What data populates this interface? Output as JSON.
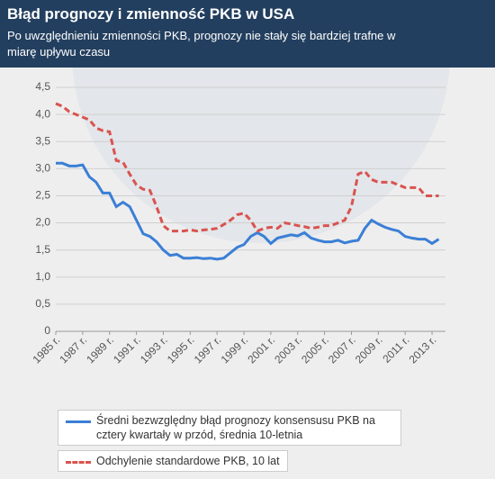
{
  "chart_data": {
    "type": "line",
    "title": "Błąd prognozy i zmienność PKB w USA",
    "subtitle": "Po uwzględnieniu zmienności PKB, prognozy nie stały się bardziej trafne w miarę upływu czasu",
    "x": [
      1985,
      1985.5,
      1986,
      1986.5,
      1987,
      1987.5,
      1988,
      1988.5,
      1989,
      1989.5,
      1990,
      1990.5,
      1991,
      1991.5,
      1992,
      1992.5,
      1993,
      1993.5,
      1994,
      1994.5,
      1995,
      1995.5,
      1996,
      1996.5,
      1997,
      1997.5,
      1998,
      1998.5,
      1999,
      1999.5,
      2000,
      2000.5,
      2001,
      2001.5,
      2002,
      2002.5,
      2003,
      2003.5,
      2004,
      2004.5,
      2005,
      2005.5,
      2006,
      2006.5,
      2007,
      2007.5,
      2008,
      2008.5,
      2009,
      2009.5,
      2010,
      2010.5,
      2011,
      2011.5,
      2012,
      2012.5,
      2013,
      2013.5
    ],
    "series": [
      {
        "name": "Średni bezwzględny błąd prognozy konsensusu PKB na cztery kwartały w przód, średnia 10-letnia",
        "color": "#3b7fd6",
        "dashed": false,
        "values": [
          3.1,
          3.1,
          3.05,
          3.05,
          3.07,
          2.85,
          2.75,
          2.55,
          2.55,
          2.3,
          2.38,
          2.3,
          2.05,
          1.8,
          1.75,
          1.65,
          1.5,
          1.4,
          1.42,
          1.35,
          1.35,
          1.36,
          1.34,
          1.35,
          1.33,
          1.35,
          1.45,
          1.55,
          1.6,
          1.75,
          1.82,
          1.75,
          1.62,
          1.72,
          1.75,
          1.78,
          1.76,
          1.82,
          1.72,
          1.68,
          1.65,
          1.65,
          1.68,
          1.63,
          1.66,
          1.68,
          1.9,
          2.05,
          1.98,
          1.92,
          1.88,
          1.85,
          1.75,
          1.72,
          1.7,
          1.7,
          1.62,
          1.7
        ]
      },
      {
        "name": "Odchylenie standardowe PKB, 10 lat",
        "color": "#d9534f",
        "dashed": true,
        "values": [
          4.2,
          4.15,
          4.05,
          4.0,
          3.95,
          3.9,
          3.75,
          3.7,
          3.68,
          3.15,
          3.12,
          2.9,
          2.7,
          2.62,
          2.6,
          2.3,
          1.95,
          1.85,
          1.85,
          1.85,
          1.87,
          1.85,
          1.87,
          1.88,
          1.9,
          1.97,
          2.05,
          2.15,
          2.18,
          2.05,
          1.85,
          1.9,
          1.92,
          1.9,
          2.0,
          1.98,
          1.95,
          1.93,
          1.9,
          1.92,
          1.95,
          1.95,
          2.0,
          2.05,
          2.3,
          2.9,
          2.95,
          2.8,
          2.75,
          2.75,
          2.75,
          2.7,
          2.65,
          2.65,
          2.65,
          2.5,
          2.5,
          2.5
        ]
      }
    ],
    "xlim": [
      1985,
      2014
    ],
    "xticks": [
      {
        "value": 1985,
        "label": "1985 r."
      },
      {
        "value": 1987,
        "label": "1987 r."
      },
      {
        "value": 1989,
        "label": "1989 r."
      },
      {
        "value": 1991,
        "label": "1991 r."
      },
      {
        "value": 1993,
        "label": "1993 r."
      },
      {
        "value": 1995,
        "label": "1995 r."
      },
      {
        "value": 1997,
        "label": "1997 r."
      },
      {
        "value": 1999,
        "label": "1999 r."
      },
      {
        "value": 2001,
        "label": "2001 r."
      },
      {
        "value": 2003,
        "label": "2003 r."
      },
      {
        "value": 2005,
        "label": "2005 r."
      },
      {
        "value": 2007,
        "label": "2007 r."
      },
      {
        "value": 2009,
        "label": "2009 r."
      },
      {
        "value": 2011,
        "label": "2011 r."
      },
      {
        "value": 2013,
        "label": "2013 r."
      }
    ],
    "ylim": [
      0,
      4.5
    ],
    "yticks": [
      0,
      {
        "value": 0.5,
        "label": "0,5"
      },
      {
        "value": 1,
        "label": "1,0"
      },
      {
        "value": 1.5,
        "label": "1,5"
      },
      {
        "value": 2,
        "label": "2,0"
      },
      {
        "value": 2.5,
        "label": "2,5"
      },
      {
        "value": 3,
        "label": "3,0"
      },
      {
        "value": 3.5,
        "label": "3,5"
      },
      {
        "value": 4,
        "label": "4,0"
      },
      {
        "value": 4.5,
        "label": "4,5"
      }
    ],
    "grid": true
  }
}
